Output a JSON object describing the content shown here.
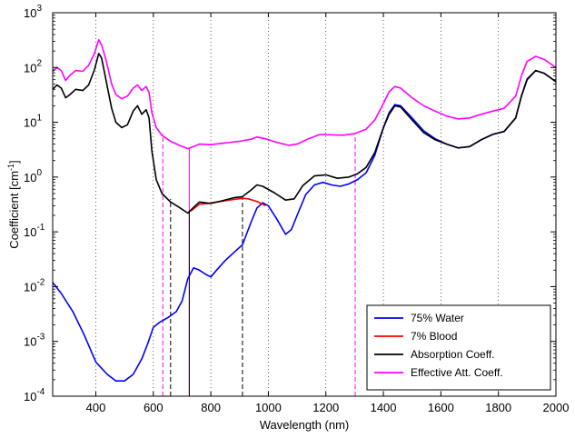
{
  "chart_data": {
    "type": "line",
    "title": "",
    "xlabel": "Wavelength (nm)",
    "ylabel": "Coefficient [cm",
    "ylabel_sup": "-1",
    "ylabel_end": "]",
    "xlim": [
      250,
      2000
    ],
    "ylim": [
      0.0001,
      1000
    ],
    "yscale": "log",
    "grid": "vertical dotted at x ticks",
    "legend_position": "bottom-right",
    "x_ticks": [
      "400",
      "600",
      "800",
      "1000",
      "1200",
      "1400",
      "1600",
      "1800",
      "2000"
    ],
    "y_ticks": [
      {
        "base": "10",
        "exp": "-4"
      },
      {
        "base": "10",
        "exp": "-3"
      },
      {
        "base": "10",
        "exp": "-2"
      },
      {
        "base": "10",
        "exp": "-1"
      },
      {
        "base": "10",
        "exp": "0"
      },
      {
        "base": "10",
        "exp": "1"
      },
      {
        "base": "10",
        "exp": "2"
      },
      {
        "base": "10",
        "exp": "3"
      }
    ],
    "series": [
      {
        "name": "75% Water",
        "color": "#0000ff",
        "points": [
          [
            250,
            0.012
          ],
          [
            280,
            0.0075
          ],
          [
            320,
            0.0035
          ],
          [
            360,
            0.0013
          ],
          [
            400,
            0.00042
          ],
          [
            440,
            0.00025
          ],
          [
            470,
            0.00019
          ],
          [
            500,
            0.00019
          ],
          [
            530,
            0.00025
          ],
          [
            560,
            0.00048
          ],
          [
            580,
            0.0009
          ],
          [
            600,
            0.0018
          ],
          [
            620,
            0.0022
          ],
          [
            650,
            0.0027
          ],
          [
            680,
            0.0035
          ],
          [
            700,
            0.0055
          ],
          [
            720,
            0.014
          ],
          [
            740,
            0.022
          ],
          [
            760,
            0.02
          ],
          [
            780,
            0.017
          ],
          [
            800,
            0.015
          ],
          [
            820,
            0.02
          ],
          [
            850,
            0.03
          ],
          [
            880,
            0.042
          ],
          [
            910,
            0.058
          ],
          [
            940,
            0.15
          ],
          [
            960,
            0.27
          ],
          [
            980,
            0.34
          ],
          [
            1000,
            0.3
          ],
          [
            1030,
            0.17
          ],
          [
            1060,
            0.09
          ],
          [
            1080,
            0.11
          ],
          [
            1100,
            0.2
          ],
          [
            1130,
            0.48
          ],
          [
            1160,
            0.72
          ],
          [
            1190,
            0.8
          ],
          [
            1220,
            0.72
          ],
          [
            1250,
            0.68
          ],
          [
            1280,
            0.75
          ],
          [
            1310,
            0.9
          ],
          [
            1340,
            1.2
          ],
          [
            1370,
            2.5
          ],
          [
            1400,
            8
          ],
          [
            1420,
            15
          ],
          [
            1440,
            21
          ],
          [
            1460,
            20
          ],
          [
            1500,
            12
          ],
          [
            1540,
            7
          ],
          [
            1580,
            5
          ],
          [
            1620,
            4
          ],
          [
            1660,
            3.4
          ],
          [
            1700,
            3.6
          ],
          [
            1740,
            4.8
          ],
          [
            1780,
            6
          ],
          [
            1820,
            6.8
          ],
          [
            1860,
            12
          ],
          [
            1880,
            30
          ],
          [
            1900,
            62
          ],
          [
            1930,
            88
          ],
          [
            1960,
            78
          ],
          [
            2000,
            55
          ]
        ]
      },
      {
        "name": "7% Blood",
        "color": "#ff0000",
        "points": [
          [
            730,
            0.24
          ],
          [
            760,
            0.32
          ],
          [
            790,
            0.33
          ],
          [
            820,
            0.35
          ],
          [
            850,
            0.37
          ],
          [
            880,
            0.39
          ],
          [
            910,
            0.41
          ],
          [
            930,
            0.4
          ],
          [
            960,
            0.36
          ],
          [
            990,
            0.3
          ]
        ]
      },
      {
        "name": "Absorption Coeff.",
        "color": "#000000",
        "points": [
          [
            250,
            40
          ],
          [
            265,
            48
          ],
          [
            280,
            42
          ],
          [
            295,
            28
          ],
          [
            310,
            32
          ],
          [
            330,
            40
          ],
          [
            355,
            38
          ],
          [
            375,
            48
          ],
          [
            395,
            90
          ],
          [
            410,
            180
          ],
          [
            420,
            150
          ],
          [
            435,
            60
          ],
          [
            455,
            18
          ],
          [
            470,
            10
          ],
          [
            490,
            8
          ],
          [
            510,
            9
          ],
          [
            530,
            16
          ],
          [
            545,
            20
          ],
          [
            560,
            14
          ],
          [
            575,
            17
          ],
          [
            585,
            12
          ],
          [
            595,
            3
          ],
          [
            610,
            0.9
          ],
          [
            630,
            0.5
          ],
          [
            660,
            0.35
          ],
          [
            690,
            0.28
          ],
          [
            720,
            0.22
          ],
          [
            740,
            0.28
          ],
          [
            760,
            0.35
          ],
          [
            800,
            0.33
          ],
          [
            840,
            0.37
          ],
          [
            880,
            0.42
          ],
          [
            910,
            0.44
          ],
          [
            940,
            0.58
          ],
          [
            960,
            0.72
          ],
          [
            980,
            0.68
          ],
          [
            1020,
            0.52
          ],
          [
            1060,
            0.38
          ],
          [
            1090,
            0.4
          ],
          [
            1120,
            0.7
          ],
          [
            1160,
            1.05
          ],
          [
            1200,
            1.1
          ],
          [
            1240,
            0.95
          ],
          [
            1280,
            1.0
          ],
          [
            1310,
            1.15
          ],
          [
            1340,
            1.5
          ],
          [
            1370,
            2.8
          ],
          [
            1400,
            8
          ],
          [
            1420,
            14
          ],
          [
            1440,
            20
          ],
          [
            1460,
            19
          ],
          [
            1500,
            11
          ],
          [
            1540,
            6.5
          ],
          [
            1580,
            4.8
          ],
          [
            1620,
            4
          ],
          [
            1660,
            3.4
          ],
          [
            1700,
            3.6
          ],
          [
            1740,
            4.8
          ],
          [
            1780,
            6
          ],
          [
            1820,
            6.8
          ],
          [
            1860,
            12
          ],
          [
            1880,
            30
          ],
          [
            1900,
            60
          ],
          [
            1930,
            88
          ],
          [
            1960,
            78
          ],
          [
            2000,
            55
          ]
        ]
      },
      {
        "name": "Effective Att. Coeff.",
        "color": "#ff00ff",
        "points": [
          [
            250,
            85
          ],
          [
            265,
            100
          ],
          [
            280,
            88
          ],
          [
            295,
            58
          ],
          [
            310,
            72
          ],
          [
            330,
            88
          ],
          [
            355,
            85
          ],
          [
            375,
            110
          ],
          [
            395,
            180
          ],
          [
            410,
            320
          ],
          [
            420,
            260
          ],
          [
            435,
            140
          ],
          [
            455,
            50
          ],
          [
            470,
            32
          ],
          [
            490,
            27
          ],
          [
            510,
            30
          ],
          [
            530,
            42
          ],
          [
            545,
            48
          ],
          [
            560,
            38
          ],
          [
            575,
            45
          ],
          [
            585,
            35
          ],
          [
            595,
            15
          ],
          [
            610,
            8
          ],
          [
            630,
            5.8
          ],
          [
            660,
            4.5
          ],
          [
            690,
            3.8
          ],
          [
            720,
            3.3
          ],
          [
            740,
            3.6
          ],
          [
            760,
            4
          ],
          [
            800,
            3.9
          ],
          [
            850,
            4.2
          ],
          [
            900,
            4.5
          ],
          [
            940,
            4.9
          ],
          [
            960,
            5.4
          ],
          [
            990,
            5
          ],
          [
            1030,
            4.3
          ],
          [
            1070,
            3.8
          ],
          [
            1100,
            4
          ],
          [
            1140,
            5
          ],
          [
            1180,
            6
          ],
          [
            1220,
            5.9
          ],
          [
            1260,
            5.8
          ],
          [
            1300,
            6.2
          ],
          [
            1340,
            7.5
          ],
          [
            1370,
            11
          ],
          [
            1400,
            22
          ],
          [
            1420,
            36
          ],
          [
            1440,
            45
          ],
          [
            1460,
            42
          ],
          [
            1500,
            28
          ],
          [
            1540,
            20
          ],
          [
            1580,
            16
          ],
          [
            1620,
            13
          ],
          [
            1660,
            11.5
          ],
          [
            1700,
            12
          ],
          [
            1740,
            14
          ],
          [
            1780,
            16
          ],
          [
            1820,
            18
          ],
          [
            1860,
            30
          ],
          [
            1880,
            70
          ],
          [
            1900,
            130
          ],
          [
            1930,
            160
          ],
          [
            1960,
            140
          ],
          [
            2000,
            100
          ]
        ]
      }
    ],
    "vertical_markers": [
      {
        "x": 633,
        "y_top": 6.2,
        "color": "#ff00ff",
        "style": "dashed"
      },
      {
        "x": 660,
        "y_top": 0.4,
        "color": "#000000",
        "style": "dashed"
      },
      {
        "x": 725,
        "y_top": 3.3,
        "color": "#ff00ff",
        "style": "solid"
      },
      {
        "x": 725,
        "y_top": 0.23,
        "color": "#000000",
        "style": "solid"
      },
      {
        "x": 910,
        "y_top": 0.44,
        "color": "#000000",
        "style": "dashed"
      },
      {
        "x": 1302,
        "y_top": 6.2,
        "color": "#ff00ff",
        "style": "dashed"
      }
    ]
  }
}
